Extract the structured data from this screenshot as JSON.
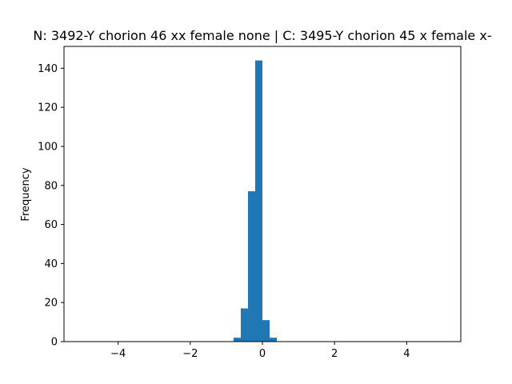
{
  "chart_data": {
    "type": "bar",
    "subtype": "histogram",
    "title": "N: 3492-Y chorion 46 xx female none | C: 3495-Y chorion 45 x female x-",
    "xlabel": "",
    "ylabel": "Frequency",
    "xlim": [
      -5.5,
      5.5
    ],
    "ylim": [
      0,
      151.2
    ],
    "xticks": [
      -4,
      -2,
      0,
      2,
      4
    ],
    "xtick_labels": [
      "−4",
      "−2",
      "0",
      "2",
      "4"
    ],
    "yticks": [
      0,
      20,
      40,
      60,
      80,
      100,
      120,
      140
    ],
    "grid": false,
    "legend": "none",
    "bar_color": "#1f77b4",
    "bins": [
      {
        "x0": -0.8,
        "x1": -0.6,
        "value": 2
      },
      {
        "x0": -0.6,
        "x1": -0.4,
        "value": 17
      },
      {
        "x0": -0.4,
        "x1": -0.2,
        "value": 77
      },
      {
        "x0": -0.2,
        "x1": 0.0,
        "value": 144
      },
      {
        "x0": 0.0,
        "x1": 0.2,
        "value": 11
      },
      {
        "x0": 0.2,
        "x1": 0.4,
        "value": 2
      }
    ]
  }
}
